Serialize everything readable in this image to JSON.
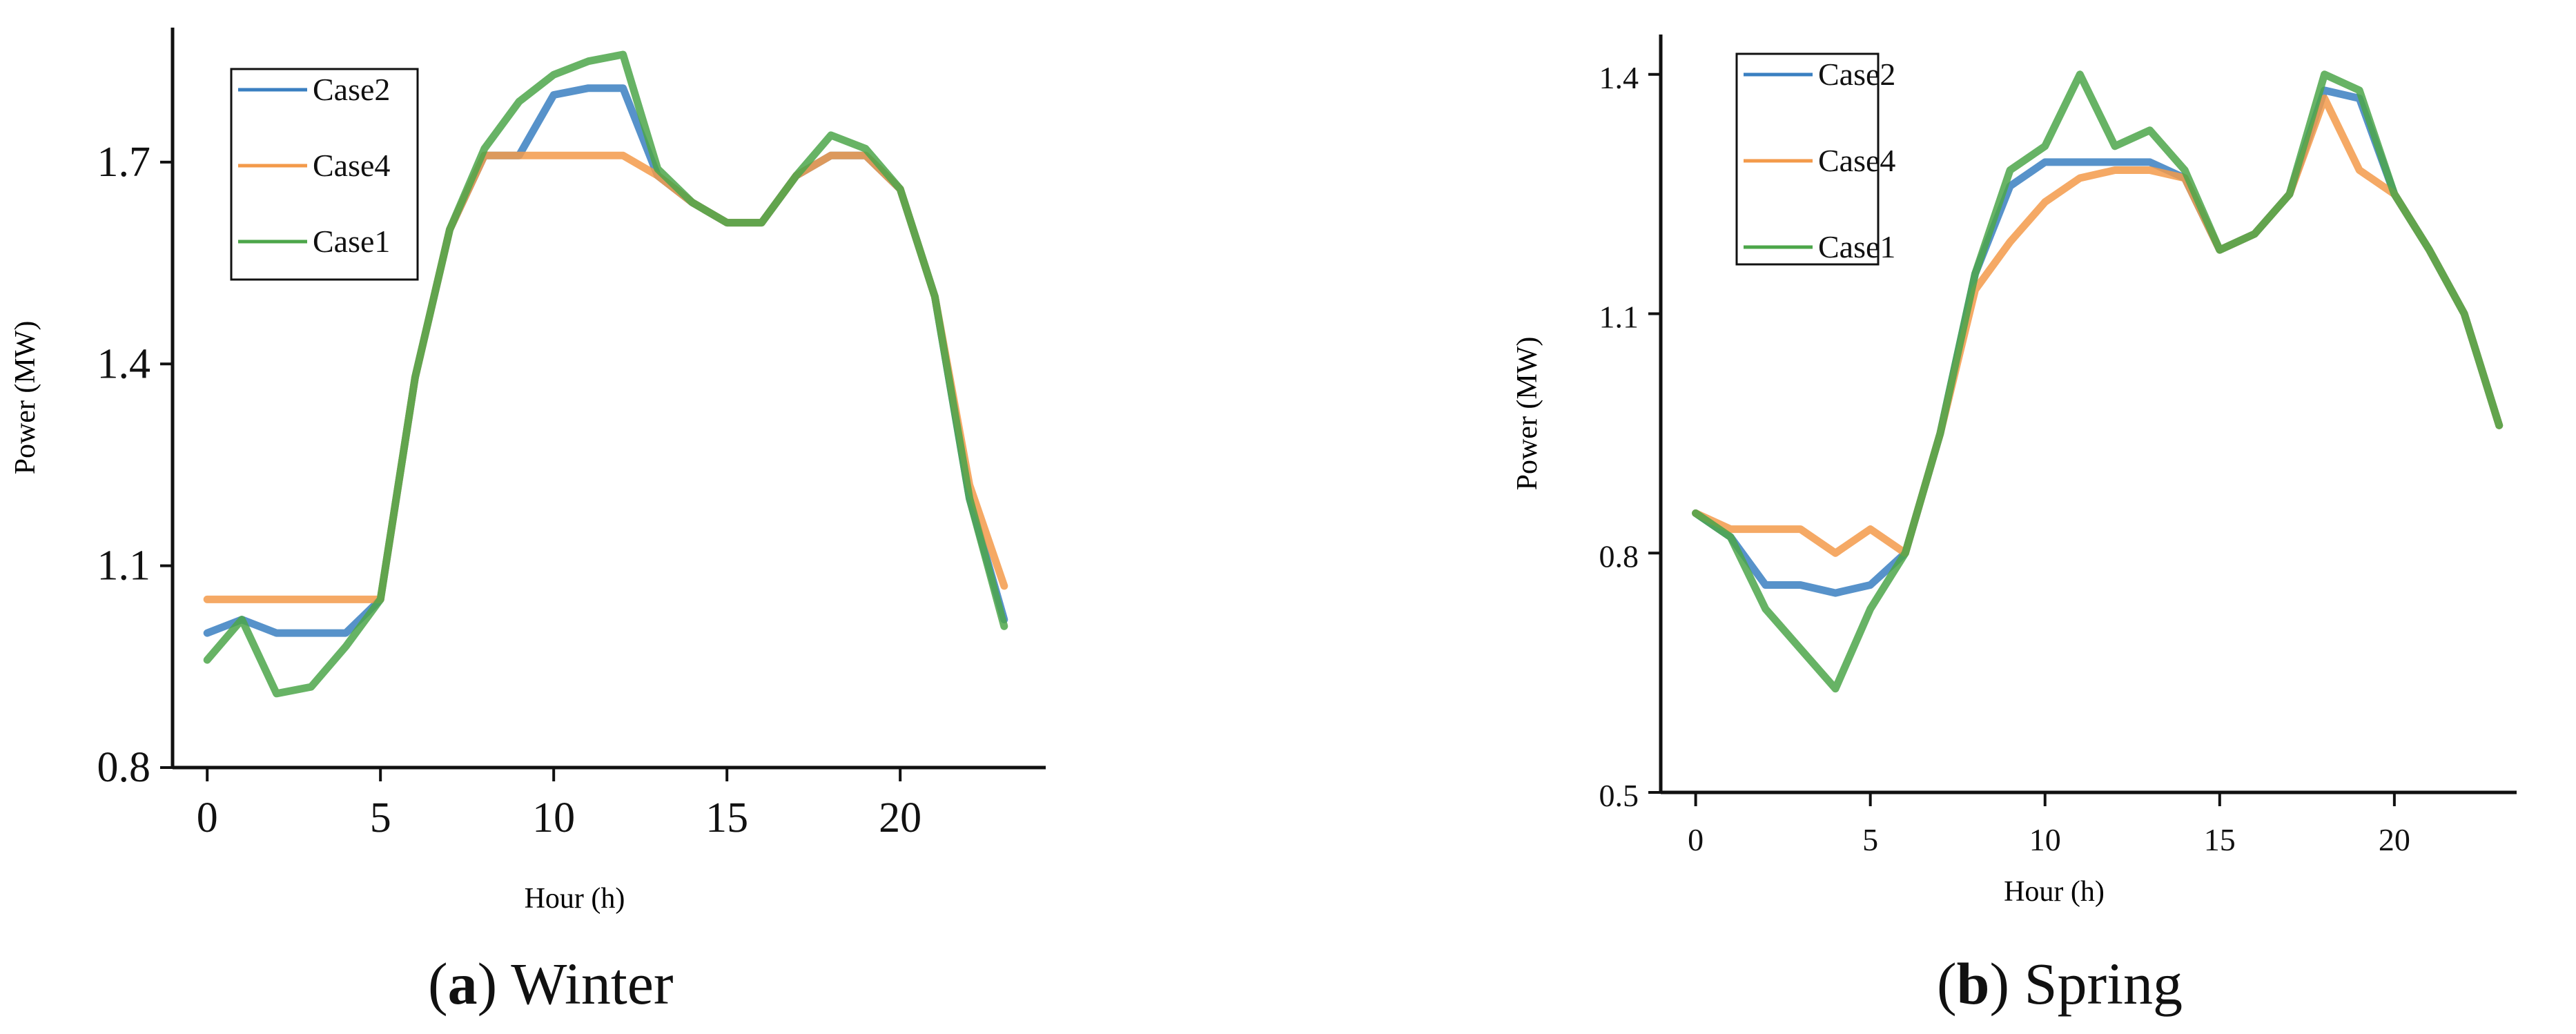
{
  "chart_data": [
    {
      "type": "line",
      "caption_letter": "a",
      "caption_text": "Winter",
      "xlabel": "Hour (h)",
      "ylabel": "Power (MW)",
      "xlim": [
        -1,
        24.2
      ],
      "ylim": [
        0.8,
        1.9
      ],
      "xticks": [
        0,
        5,
        10,
        15,
        20
      ],
      "yticks": [
        0.8,
        1.1,
        1.4,
        1.7
      ],
      "ytick_labels": [
        "0.8",
        "1.1",
        "1.4",
        "1.7"
      ],
      "legend_position": "top-left",
      "series": [
        {
          "name": "Case2",
          "color": "#3a7fc1",
          "x": [
            0,
            1,
            2,
            3,
            4,
            5,
            6,
            7,
            8,
            9,
            10,
            11,
            12,
            13,
            14,
            15,
            16,
            17,
            18,
            19,
            20,
            21,
            22,
            23
          ],
          "values": [
            1.0,
            1.02,
            1.0,
            1.0,
            1.0,
            1.05,
            1.38,
            1.6,
            1.71,
            1.71,
            1.8,
            1.81,
            1.81,
            1.68,
            1.64,
            1.61,
            1.61,
            1.68,
            1.71,
            1.71,
            1.66,
            1.5,
            1.2,
            1.02
          ]
        },
        {
          "name": "Case4",
          "color": "#f39a4a",
          "x": [
            0,
            1,
            2,
            3,
            4,
            5,
            6,
            7,
            8,
            9,
            10,
            11,
            12,
            13,
            14,
            15,
            16,
            17,
            18,
            19,
            20,
            21,
            22,
            23
          ],
          "values": [
            1.05,
            1.05,
            1.05,
            1.05,
            1.05,
            1.05,
            1.38,
            1.6,
            1.71,
            1.71,
            1.71,
            1.71,
            1.71,
            1.68,
            1.64,
            1.61,
            1.61,
            1.68,
            1.71,
            1.71,
            1.66,
            1.5,
            1.22,
            1.07
          ]
        },
        {
          "name": "Case1",
          "color": "#4ca64a",
          "x": [
            0,
            1,
            2,
            3,
            4,
            5,
            6,
            7,
            8,
            9,
            10,
            11,
            12,
            13,
            14,
            15,
            16,
            17,
            18,
            19,
            20,
            21,
            22,
            23
          ],
          "values": [
            0.96,
            1.02,
            0.91,
            0.92,
            0.98,
            1.05,
            1.38,
            1.6,
            1.72,
            1.79,
            1.83,
            1.85,
            1.86,
            1.69,
            1.64,
            1.61,
            1.61,
            1.68,
            1.74,
            1.72,
            1.66,
            1.5,
            1.2,
            1.01
          ]
        }
      ]
    },
    {
      "type": "line",
      "caption_letter": "b",
      "caption_text": "Spring",
      "xlabel": "Hour (h)",
      "ylabel": "Power (MW)",
      "xlim": [
        -1,
        23.5
      ],
      "ylim": [
        0.5,
        1.45
      ],
      "xticks": [
        0,
        5,
        10,
        15,
        20
      ],
      "yticks": [
        0.5,
        0.8,
        1.1,
        1.4
      ],
      "ytick_labels": [
        "0.5",
        "0.8",
        "1.1",
        "1.4"
      ],
      "legend_position": "top-left",
      "series": [
        {
          "name": "Case2",
          "color": "#3a7fc1",
          "x": [
            0,
            1,
            2,
            3,
            4,
            5,
            6,
            7,
            8,
            9,
            10,
            11,
            12,
            13,
            14,
            15,
            16,
            17,
            18,
            19,
            20,
            21,
            22,
            23
          ],
          "values": [
            0.85,
            0.82,
            0.76,
            0.76,
            0.75,
            0.76,
            0.8,
            0.95,
            1.15,
            1.26,
            1.29,
            1.29,
            1.29,
            1.29,
            1.27,
            1.18,
            1.2,
            1.25,
            1.38,
            1.37,
            1.25,
            1.18,
            1.1,
            0.96
          ]
        },
        {
          "name": "Case4",
          "color": "#f39a4a",
          "x": [
            0,
            1,
            2,
            3,
            4,
            5,
            6,
            7,
            8,
            9,
            10,
            11,
            12,
            13,
            14,
            15,
            16,
            17,
            18,
            19,
            20,
            21,
            22,
            23
          ],
          "values": [
            0.85,
            0.83,
            0.83,
            0.83,
            0.8,
            0.83,
            0.8,
            0.95,
            1.13,
            1.19,
            1.24,
            1.27,
            1.28,
            1.28,
            1.27,
            1.18,
            1.2,
            1.25,
            1.37,
            1.28,
            1.25,
            1.18,
            1.1,
            0.96
          ]
        },
        {
          "name": "Case1",
          "color": "#4ca64a",
          "x": [
            0,
            1,
            2,
            3,
            4,
            5,
            6,
            7,
            8,
            9,
            10,
            11,
            12,
            13,
            14,
            15,
            16,
            17,
            18,
            19,
            20,
            21,
            22,
            23
          ],
          "values": [
            0.85,
            0.82,
            0.73,
            0.68,
            0.63,
            0.73,
            0.8,
            0.95,
            1.15,
            1.28,
            1.31,
            1.4,
            1.31,
            1.33,
            1.28,
            1.18,
            1.2,
            1.25,
            1.4,
            1.38,
            1.25,
            1.18,
            1.1,
            0.96
          ]
        }
      ]
    }
  ]
}
